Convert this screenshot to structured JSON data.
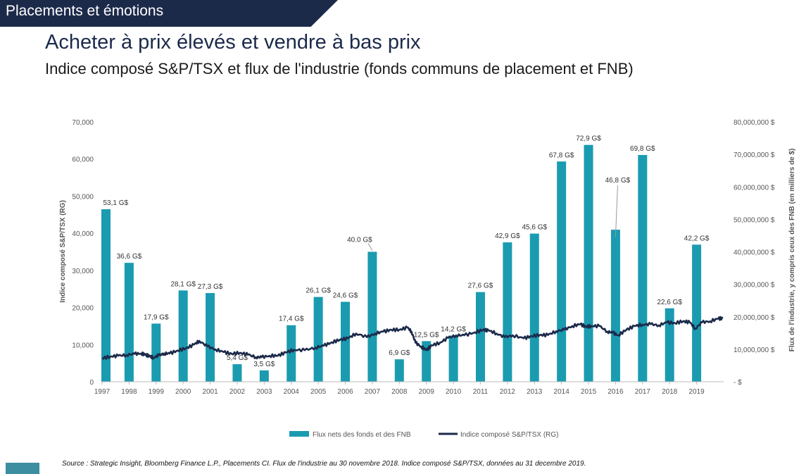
{
  "header": {
    "section_tag": "Placements et émotions",
    "title": "Acheter à prix élevés et vendre à bas prix",
    "subtitle": "Indice composé S&P/TSX et flux de l'industrie (fonds communs de placement et FNB)"
  },
  "source": "Source : Strategic Insight, Bloomberg Finance L.P., Placements CI. Flux de l'industrie au 30 novembre 2018. Indice composé S&P/TSX, données au 31 decembre 2019.",
  "colors": {
    "bar": "#1a9bb0",
    "line": "#1c2a4a",
    "tag": "#1c2a4a"
  },
  "chart_data": {
    "type": "bar",
    "categories": [
      "1997",
      "1998",
      "1999",
      "2000",
      "2001",
      "2002",
      "2003",
      "2004",
      "2005",
      "2006",
      "2007",
      "2008",
      "2009",
      "2010",
      "2011",
      "2012",
      "2013",
      "2014",
      "2015",
      "2016",
      "2017",
      "2018",
      "2019"
    ],
    "left_axis": {
      "label": "Indice composé S&P/TSX (RG)",
      "ticks": [
        "0",
        "10,000",
        "20,000",
        "30,000",
        "40,000",
        "50,000",
        "60,000",
        "70,000"
      ],
      "ylim": [
        0,
        70000
      ]
    },
    "right_axis": {
      "label": "Flux  de l'industrie, y compris ceux des  FNB (en milliers de $)",
      "ticks": [
        "- $",
        "10,000,000 $",
        "20,000,000 $",
        "30,000,000 $",
        "40,000,000 $",
        "50,000,000 $",
        "60,000,000 $",
        "70,000,000 $",
        "80,000,000 $"
      ],
      "ylim": [
        0,
        80
      ]
    },
    "series": [
      {
        "name": "Flux nets des fonds et des FNB",
        "type": "bar",
        "values": [
          53.1,
          36.6,
          17.9,
          28.1,
          27.3,
          5.4,
          3.5,
          17.4,
          26.1,
          24.6,
          40.0,
          6.9,
          12.5,
          14.2,
          27.6,
          42.9,
          45.6,
          67.8,
          72.9,
          46.8,
          69.8,
          22.6,
          42.2
        ],
        "labels": [
          "53,1 G$",
          "36,6 G$",
          "17,9 G$",
          "28,1 G$",
          "27,3 G$",
          "5,4 G$",
          "3,5 G$",
          "17,4 G$",
          "26,1 G$",
          "24,6 G$",
          "40.0 G$",
          "6,9 G$",
          "12,5 G$",
          "14,2 G$",
          "27,6 G$",
          "42,9 G$",
          "45,6 G$",
          "67,8 G$",
          "72,9 G$",
          "46,8 G$",
          "69,8 G$",
          "22,6 G$",
          "42,2 G$"
        ]
      },
      {
        "name": "Indice composé S&P/TSX (RG)",
        "type": "line",
        "x": [
          1997.0,
          1997.3,
          1997.6,
          1997.9,
          1998.2,
          1998.45,
          1998.6,
          1998.75,
          1998.9,
          1999.1,
          1999.3,
          1999.5,
          1999.8,
          2000.1,
          2000.4,
          2000.6,
          2000.9,
          2001.2,
          2001.5,
          2001.8,
          2002.1,
          2002.4,
          2002.7,
          2002.9,
          2003.2,
          2003.5,
          2003.8,
          2004.1,
          2004.5,
          2004.9,
          2005.2,
          2005.5,
          2005.8,
          2006.1,
          2006.4,
          2006.8,
          2007.1,
          2007.4,
          2007.7,
          2008.0,
          2008.3,
          2008.45,
          2008.6,
          2008.8,
          2009.0,
          2009.2,
          2009.5,
          2009.8,
          2010.1,
          2010.4,
          2010.8,
          2011.1,
          2011.3,
          2011.6,
          2011.9,
          2012.2,
          2012.6,
          2012.9,
          2013.2,
          2013.5,
          2013.8,
          2014.1,
          2014.4,
          2014.7,
          2014.9,
          2015.1,
          2015.4,
          2015.7,
          2015.9,
          2016.1,
          2016.4,
          2016.7,
          2017.0,
          2017.3,
          2017.6,
          2017.9,
          2018.2,
          2018.5,
          2018.75,
          2018.95,
          2019.2,
          2019.5,
          2019.8,
          2019.97
        ],
        "values": [
          6300,
          6800,
          7000,
          7200,
          7500,
          7600,
          7300,
          6900,
          6500,
          7100,
          7600,
          7600,
          8400,
          9000,
          10000,
          11000,
          9500,
          8700,
          8000,
          7500,
          7800,
          7300,
          6600,
          6600,
          7000,
          7000,
          7900,
          8600,
          8500,
          9200,
          9700,
          10600,
          11300,
          11700,
          13000,
          12000,
          13000,
          13500,
          14000,
          14000,
          14600,
          13500,
          10500,
          9500,
          8500,
          9800,
          10500,
          11800,
          12500,
          12500,
          13300,
          14000,
          13800,
          13000,
          12000,
          12500,
          11700,
          12300,
          12600,
          12600,
          13600,
          14000,
          15000,
          15500,
          14800,
          15000,
          15000,
          13500,
          13200,
          12500,
          14000,
          15000,
          15400,
          15500,
          15200,
          16000,
          15800,
          16300,
          16000,
          14300,
          16000,
          16300,
          17000,
          17100
        ]
      }
    ],
    "legend_position": "bottom"
  }
}
